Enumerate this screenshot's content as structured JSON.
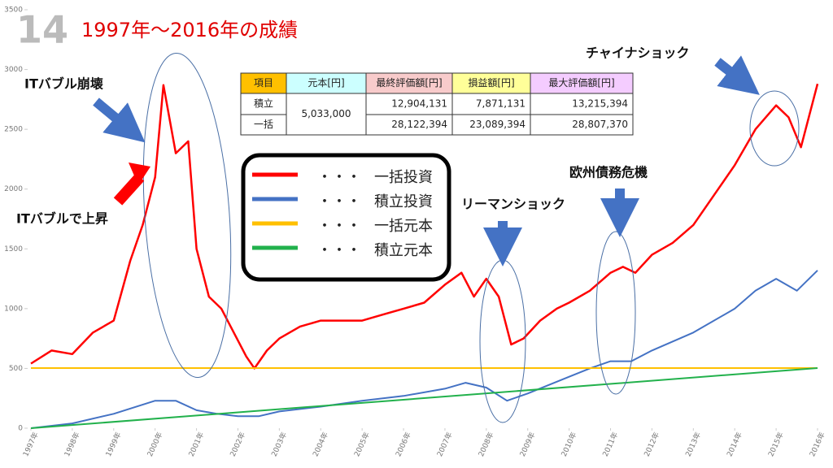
{
  "chart_data": {
    "type": "line",
    "slide_number": "14",
    "title": "1997年～2016年の成績",
    "annotations": [
      "ITバブル崩壊",
      "ITバブルで上昇",
      "チャイナショック",
      "欧州債務危機",
      "リーマンショック"
    ],
    "legend_prefix": "・・・",
    "xlim": [
      1997,
      2016
    ],
    "xticks": [
      {
        "value": 1997,
        "label": "1997年"
      },
      {
        "value": 1998,
        "label": "1998年"
      },
      {
        "value": 1999,
        "label": "1999年"
      },
      {
        "value": 2000,
        "label": "2000年"
      },
      {
        "value": 2001,
        "label": "2001年"
      },
      {
        "value": 2002,
        "label": "2002年"
      },
      {
        "value": 2003,
        "label": "2003年"
      },
      {
        "value": 2004,
        "label": "2004年"
      },
      {
        "value": 2005,
        "label": "2005年"
      },
      {
        "value": 2006,
        "label": "2006年"
      },
      {
        "value": 2007,
        "label": "2007年"
      },
      {
        "value": 2008,
        "label": "2008年"
      },
      {
        "value": 2009,
        "label": "2009年"
      },
      {
        "value": 2010,
        "label": "2010年"
      },
      {
        "value": 2011,
        "label": "2011年"
      },
      {
        "value": 2012,
        "label": "2012年"
      },
      {
        "value": 2013,
        "label": "2013年"
      },
      {
        "value": 2014,
        "label": "2014年"
      },
      {
        "value": 2015,
        "label": "2015年"
      },
      {
        "value": 2016,
        "label": "2016年"
      }
    ],
    "ylim": [
      0,
      3500
    ],
    "yticks": [
      0,
      500,
      1000,
      1500,
      2000,
      2500,
      3000,
      3500
    ],
    "series": [
      {
        "name": "一括投資",
        "color": "#ff0000",
        "x": [
          1997,
          1997.5,
          1998,
          1998.5,
          1999,
          1999.4,
          1999.7,
          2000,
          2000.2,
          2000.5,
          2000.8,
          2001,
          2001.3,
          2001.6,
          2001.9,
          2002.2,
          2002.4,
          2002.7,
          2003,
          2003.5,
          2004,
          2004.5,
          2005,
          2005.5,
          2006,
          2006.5,
          2007,
          2007.4,
          2007.7,
          2008,
          2008.3,
          2008.6,
          2008.9,
          2009.3,
          2009.7,
          2010,
          2010.5,
          2011,
          2011.3,
          2011.6,
          2012,
          2012.5,
          2013,
          2013.5,
          2014,
          2014.5,
          2015,
          2015.3,
          2015.6,
          2016
        ],
        "values": [
          540,
          650,
          620,
          800,
          900,
          1400,
          1700,
          2100,
          2870,
          2300,
          2400,
          1500,
          1100,
          1000,
          800,
          600,
          500,
          650,
          750,
          850,
          900,
          900,
          900,
          950,
          1000,
          1050,
          1200,
          1300,
          1100,
          1250,
          1100,
          700,
          750,
          900,
          1000,
          1050,
          1150,
          1300,
          1350,
          1300,
          1450,
          1550,
          1700,
          1950,
          2200,
          2500,
          2700,
          2600,
          2350,
          2880
        ]
      },
      {
        "name": "積立投資",
        "color": "#4472c4",
        "x": [
          1997,
          1998,
          1999,
          2000,
          2000.5,
          2001,
          2001.5,
          2002,
          2002.5,
          2003,
          2004,
          2005,
          2006,
          2007,
          2007.5,
          2008,
          2008.5,
          2009,
          2010,
          2010.5,
          2011,
          2011.5,
          2012,
          2013,
          2014,
          2014.5,
          2015,
          2015.5,
          2016
        ],
        "values": [
          0,
          40,
          120,
          230,
          230,
          150,
          120,
          100,
          100,
          140,
          180,
          230,
          270,
          330,
          380,
          340,
          230,
          290,
          430,
          500,
          560,
          560,
          650,
          800,
          1000,
          1150,
          1250,
          1150,
          1320
        ]
      },
      {
        "name": "一括元本",
        "color": "#ffc000",
        "x": [
          1997,
          2016
        ],
        "values": [
          503,
          503
        ]
      },
      {
        "name": "積立元本",
        "color": "#22b14c",
        "x": [
          1997,
          2016
        ],
        "values": [
          0,
          503
        ]
      }
    ],
    "table": {
      "header": [
        "項目",
        "元本[円]",
        "最終評価額[円]",
        "損益額[円]",
        "最大評価額[円]"
      ],
      "principal": "5,033,000",
      "rows": [
        [
          "積立",
          "12,904,131",
          "7,871,131",
          "13,215,394"
        ],
        [
          "一括",
          "28,122,394",
          "23,089,394",
          "28,807,370"
        ]
      ]
    }
  }
}
